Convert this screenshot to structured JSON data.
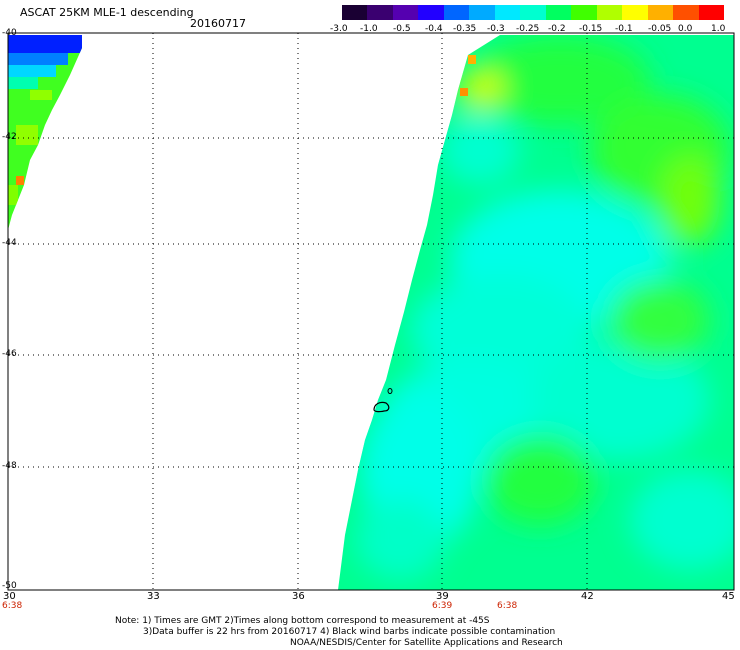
{
  "header": {
    "title": "ASCAT 25KM MLE-1 descending",
    "date": "20160717"
  },
  "colorbar": {
    "ticks": [
      "-3.0",
      "-1.0",
      "-0.5",
      "-0.4",
      "-0.35",
      "-0.3",
      "-0.25",
      "-0.2",
      "-0.15",
      "-0.1",
      "-0.05",
      "0.0",
      "1.0"
    ],
    "colors": [
      "#1a0033",
      "#3a0070",
      "#5500b0",
      "#2200ff",
      "#0066ff",
      "#00aaff",
      "#00e8ff",
      "#00ffd0",
      "#00ff60",
      "#40ff00",
      "#b0ff00",
      "#ffff00",
      "#ffb000",
      "#ff5000",
      "#ff0000"
    ]
  },
  "map": {
    "lat_labels": [
      "-40",
      "-42",
      "-44",
      "-46",
      "-48",
      "-50"
    ],
    "lon_labels": [
      "30",
      "33",
      "36",
      "39",
      "42",
      "45"
    ],
    "time_labels": [
      "6:38",
      "6:39",
      "6:38"
    ]
  },
  "notes": {
    "line1": "Note: 1) Times are GMT 2)Times along bottom correspond to measurement at -45S",
    "line2": "3)Data buffer is 22 hrs from 20160717 4) Black wind barbs indicate possible contamination",
    "line3": "NOAA/NESDIS/Center for Satellite Applications and Research"
  }
}
